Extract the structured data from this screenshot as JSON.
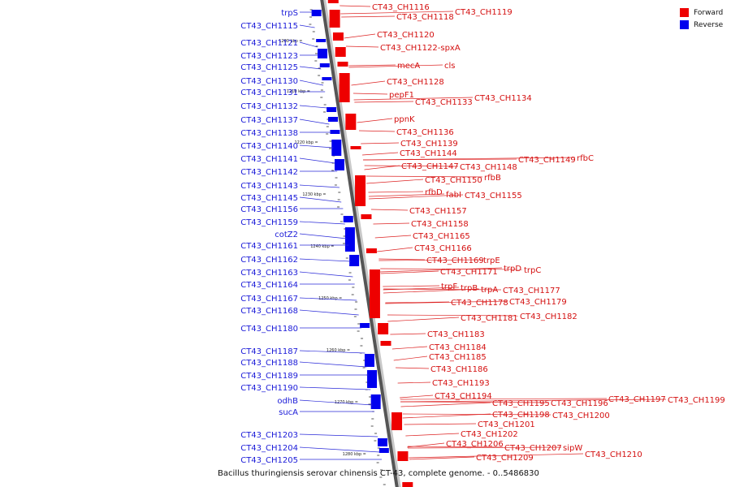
{
  "caption": "Bacillus thuringiensis serovar chinensis CT-43, complete genome. - 0..5486830",
  "legend": {
    "forward_label": "Forward",
    "reverse_label": "Reverse",
    "forward_color": "#ee0000",
    "reverse_color": "#0000ee"
  },
  "ticks": [
    "1200 kbp",
    "1210 kbp",
    "1220 kbp",
    "1230 kbp",
    "1240 kbp",
    "1250 kbp",
    "1260 kbp",
    "1270 kbp",
    "1280 kbp"
  ],
  "reverse_labels": [
    "trpS",
    "CT43_CH1115",
    "CT43_CH1121",
    "CT43_CH1123",
    "CT43_CH1125",
    "CT43_CH1130",
    "CT43_CH1131",
    "CT43_CH1132",
    "CT43_CH1137",
    "CT43_CH1138",
    "CT43_CH1140",
    "CT43_CH1141",
    "CT43_CH1142",
    "CT43_CH1143",
    "CT43_CH1145",
    "CT43_CH1156",
    "CT43_CH1159",
    "cotZ2",
    "CT43_CH1161",
    "CT43_CH1162",
    "CT43_CH1163",
    "CT43_CH1164",
    "CT43_CH1167",
    "CT43_CH1168",
    "CT43_CH1180",
    "CT43_CH1187",
    "CT43_CH1188",
    "CT43_CH1189",
    "CT43_CH1190",
    "odhB",
    "sucA",
    "CT43_CH1203",
    "CT43_CH1204",
    "CT43_CH1205"
  ],
  "forward_labels": [
    "CT43_CH1116",
    "CT43_CH1118",
    "CT43_CH1119",
    "CT43_CH1120",
    "CT43_CH1122-spxA",
    "mecA",
    "cls",
    "CT43_CH1128",
    "pepF1",
    "CT43_CH1133",
    "CT43_CH1134",
    "ppnK",
    "CT43_CH1136",
    "CT43_CH1139",
    "CT43_CH1144",
    "CT43_CH1147",
    "CT43_CH1148",
    "CT43_CH1149",
    "rfbC",
    "CT43_CH1150",
    "rfbB",
    "rfbD",
    "fabI",
    "CT43_CH1155",
    "CT43_CH1157",
    "CT43_CH1158",
    "CT43_CH1165",
    "CT43_CH1166",
    "CT43_CH1169",
    "trpE",
    "CT43_CH1171",
    "trpD",
    "trpC",
    "trpF",
    "trpB",
    "trpA",
    "CT43_CH1177",
    "CT43_CH1178",
    "CT43_CH1179",
    "CT43_CH1181",
    "CT43_CH1182",
    "CT43_CH1183",
    "CT43_CH1184",
    "CT43_CH1185",
    "CT43_CH1186",
    "CT43_CH1193",
    "CT43_CH1194",
    "CT43_CH1195",
    "CT43_CH1196",
    "CT43_CH1197",
    "CT43_CH1199",
    "CT43_CH1198",
    "CT43_CH1200",
    "CT43_CH1201",
    "CT43_CH1202",
    "CT43_CH1206",
    "CT43_CH1207",
    "sipW",
    "CT43_CH1209",
    "CT43_CH1210"
  ]
}
